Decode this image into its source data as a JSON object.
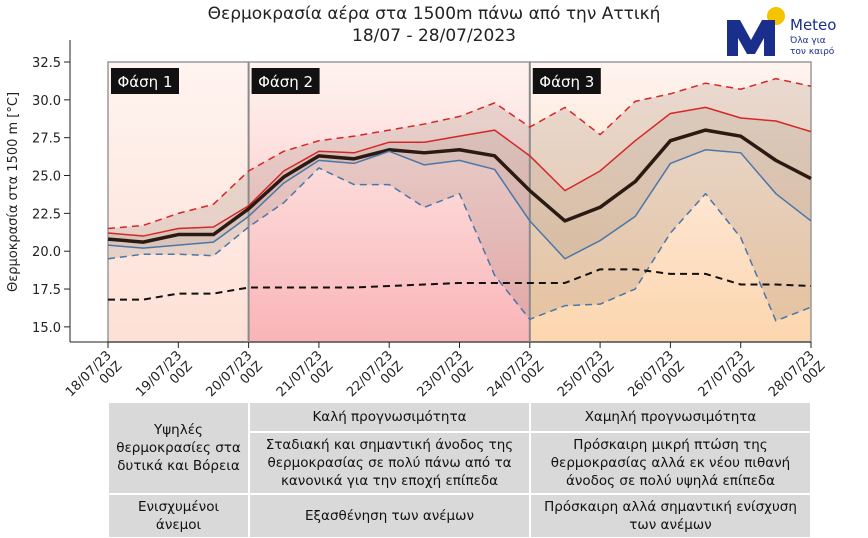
{
  "title_line1": "Θερμοκρασία αέρα στα 1500m πάνω από την Αττική",
  "title_line2": "18/07 - 28/07/2023",
  "logo": {
    "word": "Meteo",
    "subtitle_line1": "Όλα για",
    "subtitle_line2": "τον καιρό",
    "colors": {
      "sun": "#f4c400",
      "letter": "#1a2e8c"
    }
  },
  "chart_data": {
    "type": "line",
    "title": "Θερμοκρασία αέρα στα 1500m πάνω από την Αττική",
    "subtitle": "18/07 - 28/07/2023",
    "ylabel": "Θερμοκρασία στα 1500 m [°C]",
    "xlabel": "",
    "ylim": [
      14,
      32.5
    ],
    "yticks": [
      "15.0",
      "17.5",
      "20.0",
      "22.5",
      "25.0",
      "27.5",
      "30.0",
      "32.5"
    ],
    "x_ticks": [
      [
        "18/07/23",
        "00Z"
      ],
      [
        "19/07/23",
        "00Z"
      ],
      [
        "20/07/23",
        "00Z"
      ],
      [
        "21/07/23",
        "00Z"
      ],
      [
        "22/07/23",
        "00Z"
      ],
      [
        "23/07/23",
        "00Z"
      ],
      [
        "24/07/23",
        "00Z"
      ],
      [
        "25/07/23",
        "00Z"
      ],
      [
        "26/07/23",
        "00Z"
      ],
      [
        "27/07/23",
        "00Z"
      ],
      [
        "28/07/23",
        "00Z"
      ]
    ],
    "x": [
      0,
      0.5,
      1,
      1.5,
      2,
      2.5,
      3,
      3.5,
      4,
      4.5,
      5,
      5.5,
      6,
      6.5,
      7,
      7.5,
      8,
      8.5,
      9,
      9.5,
      10
    ],
    "series": [
      {
        "role": "max",
        "color": "#d62728",
        "style": "dashed",
        "values": [
          21.5,
          21.7,
          22.5,
          23.1,
          25.3,
          26.6,
          27.3,
          27.6,
          28.0,
          28.4,
          28.9,
          29.8,
          28.2,
          29.5,
          27.7,
          29.9,
          30.4,
          31.1,
          30.7,
          31.4,
          30.9
        ]
      },
      {
        "role": "upper",
        "color": "#d62728",
        "style": "solid",
        "values": [
          21.2,
          21.0,
          21.5,
          21.6,
          23.0,
          25.3,
          26.6,
          26.5,
          27.2,
          27.2,
          27.6,
          28.0,
          26.3,
          24.0,
          25.3,
          27.3,
          29.1,
          29.5,
          28.8,
          28.6,
          27.9
        ]
      },
      {
        "role": "mean",
        "color": "#2b1a12",
        "style": "solid",
        "values": [
          20.8,
          20.6,
          21.1,
          21.1,
          22.8,
          24.9,
          26.3,
          26.1,
          26.7,
          26.5,
          26.7,
          26.3,
          24.0,
          22.0,
          22.9,
          24.6,
          27.3,
          28.0,
          27.6,
          26.0,
          24.8
        ]
      },
      {
        "role": "lower",
        "color": "#4a76a8",
        "style": "solid",
        "values": [
          20.4,
          20.2,
          20.4,
          20.6,
          22.3,
          24.5,
          26.0,
          25.8,
          26.6,
          25.7,
          26.0,
          25.4,
          22.0,
          19.5,
          20.7,
          22.3,
          25.8,
          26.7,
          26.5,
          23.8,
          22.0
        ]
      },
      {
        "role": "min",
        "color": "#4a76a8",
        "style": "dashed",
        "values": [
          19.5,
          19.8,
          19.8,
          19.7,
          21.6,
          23.2,
          25.5,
          24.4,
          24.4,
          22.9,
          23.8,
          18.4,
          15.5,
          16.4,
          16.5,
          17.5,
          21.2,
          23.8,
          20.9,
          15.4,
          16.3
        ]
      },
      {
        "role": "climatology",
        "color": "#111111",
        "style": "dashed",
        "values": [
          16.8,
          16.8,
          17.2,
          17.2,
          17.6,
          17.6,
          17.6,
          17.6,
          17.7,
          17.8,
          17.9,
          17.9,
          17.9,
          17.9,
          18.8,
          18.8,
          18.5,
          18.5,
          17.8,
          17.8,
          17.7
        ]
      }
    ],
    "phases": [
      {
        "label": "Φάση 1",
        "from": 0,
        "to": 2,
        "color": "#fde0d6"
      },
      {
        "label": "Φάση 2",
        "from": 2,
        "to": 6,
        "color": "#f9b4b8"
      },
      {
        "label": "Φάση 3",
        "from": 6,
        "to": 10,
        "color": "#fcd6ae"
      }
    ],
    "grid": false
  },
  "table": {
    "row1": {
      "col1": "Υψηλές θερμοκρασίες στα δυτικά και Βόρεια",
      "col2_header": "Καλή προγνωσιμότητα",
      "col2_body": "Σταδιακή και σημαντική άνοδος της θερμοκρασίας σε πολύ πάνω από τα κανονικά για την εποχή επίπεδα",
      "col3_header": "Χαμηλή προγνωσιμότητα",
      "col3_body": "Πρόσκαιρη μικρή πτώση της θερμοκρασίας αλλά εκ νέου πιθανή άνοδος σε πολύ υψηλά επίπεδα"
    },
    "row2": {
      "col1": "Ενισχυμένοι άνεμοι",
      "col2": "Εξασθένηση των ανέμων",
      "col3": "Πρόσκαιρη αλλά σημαντική ενίσχυση των ανέμων"
    }
  }
}
